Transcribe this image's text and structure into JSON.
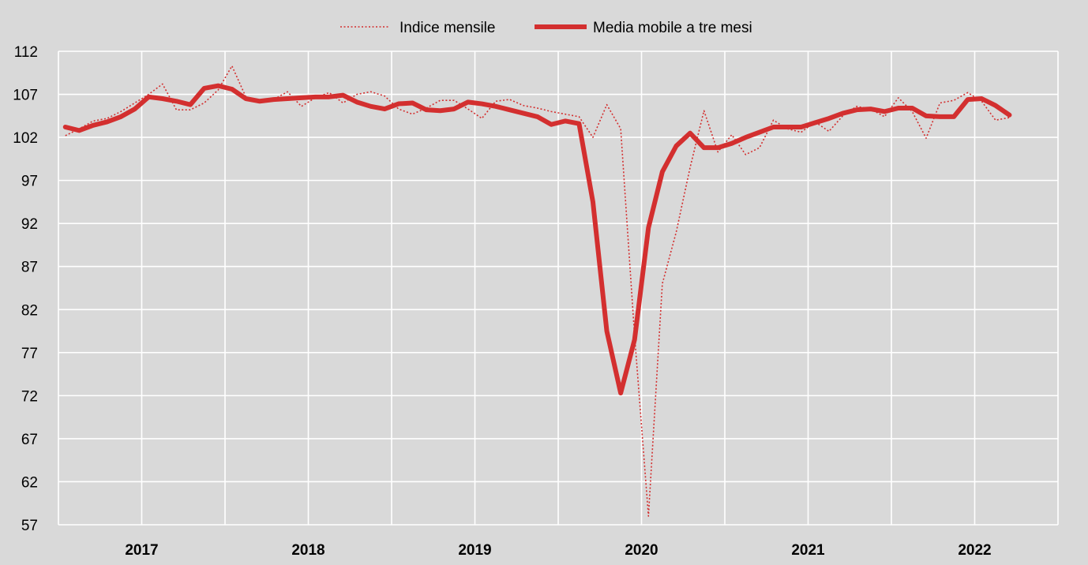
{
  "chart_data": {
    "type": "line",
    "title": "",
    "xlabel": "",
    "ylabel": "",
    "ylim": [
      57,
      112
    ],
    "yticks": [
      57,
      62,
      67,
      72,
      77,
      82,
      87,
      92,
      97,
      102,
      107,
      112
    ],
    "xtick_labels": [
      "2017",
      "2018",
      "2019",
      "2020",
      "2021",
      "2022"
    ],
    "grid": true,
    "legend_position": "top-center",
    "x_start": "2016-07",
    "x_end": "2022-06",
    "series": [
      {
        "name": "Indice mensile",
        "style": "dotted",
        "color": "#d32f2f",
        "start": "2016-07",
        "values": [
          102.2,
          103.0,
          103.9,
          104.2,
          105.0,
          106.0,
          107.0,
          108.2,
          105.2,
          105.2,
          106.0,
          107.5,
          110.3,
          106.7,
          106.0,
          106.4,
          107.3,
          105.6,
          106.6,
          107.2,
          106.0,
          107.0,
          107.3,
          106.8,
          105.3,
          104.7,
          105.4,
          106.3,
          106.3,
          105.3,
          104.2,
          106.2,
          106.4,
          105.7,
          105.4,
          105.0,
          104.7,
          104.4,
          102.0,
          105.8,
          103.0,
          79.0,
          58.0,
          85.0,
          91.0,
          98.5,
          105.1,
          100.3,
          102.3,
          100.0,
          100.8,
          104.0,
          103.0,
          102.6,
          103.8,
          102.7,
          104.5,
          105.6,
          105.3,
          104.4,
          106.6,
          105.0,
          101.9,
          106.0,
          106.3,
          107.2,
          106.2,
          104.0,
          104.3
        ]
      },
      {
        "name": "Media mobile a tre mesi",
        "style": "solid",
        "color": "#d32f2f",
        "start": "2016-07",
        "values": [
          103.2,
          102.8,
          103.4,
          103.8,
          104.4,
          105.3,
          106.7,
          106.5,
          106.2,
          105.8,
          107.7,
          108.0,
          107.6,
          106.5,
          106.2,
          106.4,
          106.5,
          106.6,
          106.7,
          106.7,
          106.9,
          106.1,
          105.6,
          105.3,
          105.9,
          106.0,
          105.2,
          105.1,
          105.3,
          106.1,
          105.9,
          105.6,
          105.2,
          104.8,
          104.4,
          103.5,
          103.9,
          103.6,
          94.5,
          79.5,
          72.3,
          78.5,
          91.5,
          98.0,
          101.0,
          102.5,
          100.8,
          100.8,
          101.3,
          102.0,
          102.6,
          103.2,
          103.2,
          103.2,
          103.7,
          104.2,
          104.8,
          105.2,
          105.3,
          105.0,
          105.4,
          105.4,
          104.5,
          104.4,
          104.4,
          106.4,
          106.5,
          105.7,
          104.6
        ]
      }
    ]
  }
}
